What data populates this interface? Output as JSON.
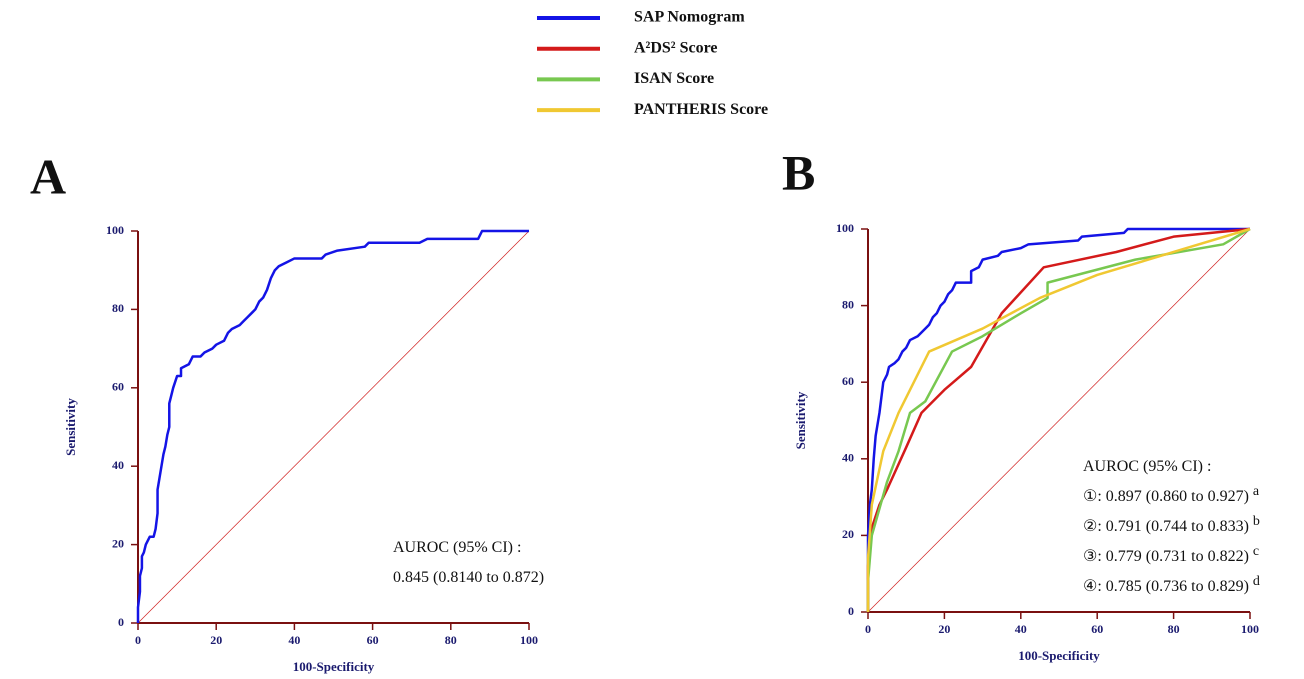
{
  "chart_data": [
    {
      "type": "line",
      "label": "A",
      "xlabel": "100-Specificity",
      "ylabel": "Sensitivity",
      "xlim": [
        0,
        100
      ],
      "ylim": [
        0,
        100
      ],
      "xticks": [
        0,
        20,
        40,
        60,
        80,
        100
      ],
      "yticks": [
        0,
        20,
        40,
        60,
        80,
        100
      ],
      "series": [
        {
          "color": "#1414e6",
          "x": [
            0,
            0,
            0.5,
            0.5,
            1,
            1,
            1.5,
            2,
            3,
            4,
            4.5,
            5,
            5,
            5.5,
            6,
            6.5,
            7,
            7.5,
            8,
            8,
            8.5,
            9,
            10,
            11,
            11,
            13,
            14,
            16,
            17,
            19,
            20,
            22,
            23,
            24,
            26,
            27,
            28,
            29,
            30,
            31,
            32,
            33,
            34,
            35,
            36,
            38,
            40,
            47,
            48,
            51,
            58,
            59,
            72,
            74,
            87,
            88,
            100
          ],
          "values": [
            0,
            4,
            8,
            12,
            14,
            17,
            18,
            20,
            22,
            22,
            24,
            28,
            34,
            37,
            40,
            43,
            45,
            48,
            50,
            56,
            58,
            60,
            63,
            63,
            65,
            66,
            68,
            68,
            69,
            70,
            71,
            72,
            74,
            75,
            76,
            77,
            78,
            79,
            80,
            82,
            83,
            85,
            88,
            90,
            91,
            92,
            93,
            93,
            94,
            95,
            96,
            97,
            97,
            98,
            98,
            100,
            100
          ]
        }
      ],
      "annotations": [
        {
          "text": "AUROC (95% CI) :"
        },
        {
          "text": "0.845 (0.8140 to 0.872)"
        }
      ]
    },
    {
      "type": "line",
      "label": "B",
      "xlabel": "100-Specificity",
      "ylabel": "Sensitivity",
      "xlim": [
        0,
        100
      ],
      "ylim": [
        0,
        100
      ],
      "xticks": [
        0,
        20,
        40,
        60,
        80,
        100
      ],
      "yticks": [
        0,
        20,
        40,
        60,
        80,
        100
      ],
      "series": [
        {
          "name": "SAP Nomogram",
          "color": "#1414e6",
          "x": [
            0,
            0,
            0.5,
            1,
            1.5,
            2,
            3,
            3.5,
            4,
            5,
            5.5,
            7,
            8,
            9,
            10,
            11,
            13,
            15,
            16,
            17,
            18,
            19,
            20,
            21,
            22,
            23,
            27,
            27,
            29,
            30,
            34,
            35,
            40,
            42,
            55,
            56,
            67,
            68,
            100
          ],
          "values": [
            0,
            20,
            28,
            32,
            40,
            46,
            52,
            56,
            60,
            62,
            64,
            65,
            66,
            68,
            69,
            71,
            72,
            74,
            75,
            77,
            78,
            80,
            81,
            83,
            84,
            86,
            86,
            89,
            90,
            92,
            93,
            94,
            95,
            96,
            97,
            98,
            99,
            100,
            100
          ]
        },
        {
          "name": "A²DS² Score",
          "color": "#d41a1a",
          "x": [
            0,
            0,
            1,
            3,
            5,
            10,
            14,
            20,
            27,
            35,
            46,
            65,
            80,
            100
          ],
          "values": [
            0,
            12,
            22,
            28,
            32,
            43,
            52,
            58,
            64,
            78,
            90,
            94,
            98,
            100
          ]
        },
        {
          "name": "ISAN Score",
          "color": "#78c850",
          "x": [
            0,
            0,
            1,
            5,
            8,
            11,
            15,
            22,
            30,
            40,
            47,
            47,
            70,
            93,
            100
          ],
          "values": [
            0,
            8,
            20,
            34,
            42,
            52,
            55,
            68,
            72,
            78,
            82,
            86,
            92,
            96,
            100
          ]
        },
        {
          "name": "PANTHERIS Score",
          "color": "#f0c832",
          "x": [
            0,
            0,
            1,
            4,
            8,
            16,
            30,
            45,
            60,
            80,
            100
          ],
          "values": [
            0,
            14,
            28,
            42,
            52,
            68,
            74,
            82,
            88,
            94,
            100
          ]
        }
      ],
      "annotations": [
        {
          "text": "AUROC (95% CI) :"
        },
        {
          "text": "①: 0.897 (0.860 to 0.927)",
          "sup": "a"
        },
        {
          "text": "②: 0.791 (0.744 to 0.833)",
          "sup": "b"
        },
        {
          "text": "③: 0.779 (0.731 to 0.822)",
          "sup": "c"
        },
        {
          "text": "④: 0.785 (0.736 to 0.829)",
          "sup": "d"
        }
      ]
    }
  ]
}
